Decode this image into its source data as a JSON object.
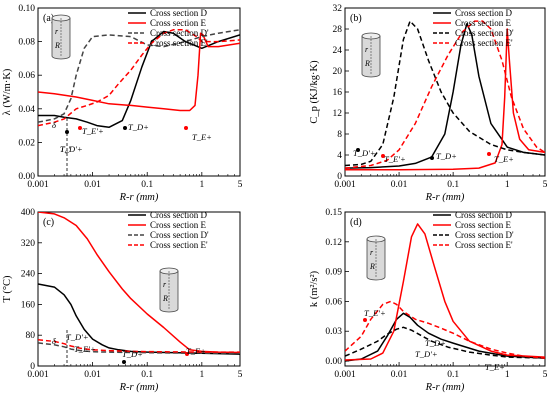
{
  "chart_data": [
    {
      "panel": "(a)",
      "type": "line",
      "xscale": "log",
      "xlim": [
        0.001,
        5
      ],
      "ylim": [
        0,
        0.1
      ],
      "xticks": [
        "0.001",
        "0.01",
        "0.1",
        "1",
        "5"
      ],
      "yticks": [
        "0.00",
        "0.02",
        "0.04",
        "0.06",
        "0.08",
        "0.10"
      ],
      "xlabel": "R-r (mm)",
      "ylabel": "λ (W/m·K)",
      "legend": "top-right",
      "series": [
        {
          "name": "Cross section D",
          "color": "#000000",
          "dash": "solid",
          "x": [
            0.001,
            0.002,
            0.003,
            0.005,
            0.008,
            0.012,
            0.02,
            0.035,
            0.05,
            0.08,
            0.12,
            0.2,
            0.3,
            0.5,
            1,
            2,
            5
          ],
          "y": [
            0.036,
            0.036,
            0.035,
            0.034,
            0.032,
            0.03,
            0.029,
            0.033,
            0.045,
            0.065,
            0.08,
            0.086,
            0.085,
            0.08,
            0.076,
            0.08,
            0.084
          ]
        },
        {
          "name": "Cross section E",
          "color": "#ff0000",
          "dash": "solid",
          "x": [
            0.001,
            0.002,
            0.005,
            0.01,
            0.02,
            0.05,
            0.1,
            0.2,
            0.4,
            0.6,
            0.75,
            0.85,
            0.95,
            1.05,
            1.3,
            2,
            5
          ],
          "y": [
            0.05,
            0.049,
            0.047,
            0.045,
            0.043,
            0.042,
            0.041,
            0.04,
            0.039,
            0.039,
            0.042,
            0.06,
            0.085,
            0.084,
            0.077,
            0.077,
            0.079
          ]
        },
        {
          "name": "Cross section D'",
          "color": "#444444",
          "dash": "dash",
          "x": [
            0.001,
            0.002,
            0.003,
            0.004,
            0.005,
            0.007,
            0.01,
            0.02,
            0.05,
            0.1,
            0.2,
            0.5,
            1,
            2,
            5
          ],
          "y": [
            0.032,
            0.034,
            0.037,
            0.046,
            0.06,
            0.076,
            0.083,
            0.084,
            0.083,
            0.078,
            0.077,
            0.08,
            0.083,
            0.085,
            0.087
          ]
        },
        {
          "name": "Cross section E'",
          "color": "#ff0000",
          "dash": "dash",
          "x": [
            0.001,
            0.002,
            0.003,
            0.005,
            0.008,
            0.012,
            0.02,
            0.03,
            0.05,
            0.08,
            0.12,
            0.2,
            0.3,
            0.5,
            0.8,
            1,
            1.5,
            2,
            5
          ],
          "y": [
            0.03,
            0.032,
            0.034,
            0.04,
            0.042,
            0.044,
            0.048,
            0.055,
            0.063,
            0.072,
            0.079,
            0.085,
            0.087,
            0.087,
            0.083,
            0.08,
            0.08,
            0.08,
            0.081
          ]
        }
      ],
      "annotations": [
        "δ",
        "T_D'+",
        "T_E'+",
        "T_D+",
        "T_E+"
      ]
    },
    {
      "panel": "(b)",
      "type": "line",
      "xscale": "log",
      "xlim": [
        0.001,
        5
      ],
      "ylim": [
        0,
        32
      ],
      "xticks": [
        "0.001",
        "0.01",
        "0.1",
        "1",
        "5"
      ],
      "yticks": [
        "0",
        "4",
        "8",
        "12",
        "16",
        "20",
        "24",
        "28",
        "32"
      ],
      "xlabel": "R-r (mm)",
      "ylabel": "C_p (KJ/kg·K)",
      "legend": "top-right",
      "series": [
        {
          "name": "Cross section D",
          "color": "#000000",
          "dash": "solid",
          "x": [
            0.001,
            0.003,
            0.01,
            0.02,
            0.04,
            0.07,
            0.1,
            0.14,
            0.18,
            0.22,
            0.3,
            0.5,
            1,
            2,
            5
          ],
          "y": [
            1.5,
            1.6,
            1.9,
            2.4,
            3.6,
            8,
            16,
            25,
            29,
            27,
            19,
            10,
            5.5,
            4.5,
            4
          ]
        },
        {
          "name": "Cross section E",
          "color": "#ff0000",
          "dash": "solid",
          "x": [
            0.001,
            0.01,
            0.1,
            0.3,
            0.6,
            0.8,
            0.9,
            1.0,
            1.1,
            1.3,
            1.7,
            2.5,
            5
          ],
          "y": [
            1.2,
            1.2,
            1.3,
            1.5,
            2.5,
            6,
            15,
            28,
            22,
            12,
            7,
            5,
            4.5
          ]
        },
        {
          "name": "Cross section D'",
          "color": "#000000",
          "dash": "dash",
          "x": [
            0.001,
            0.002,
            0.003,
            0.005,
            0.008,
            0.012,
            0.016,
            0.022,
            0.035,
            0.06,
            0.1,
            0.2,
            0.5,
            1,
            2,
            5
          ],
          "y": [
            2,
            2.2,
            2.8,
            6,
            15,
            26,
            29.5,
            28,
            22,
            16,
            12,
            8.5,
            6,
            5,
            4.5,
            4
          ]
        },
        {
          "name": "Cross section E'",
          "color": "#ff0000",
          "dash": "dash",
          "x": [
            0.001,
            0.003,
            0.006,
            0.01,
            0.02,
            0.04,
            0.08,
            0.15,
            0.25,
            0.35,
            0.5,
            0.8,
            1.2,
            2,
            3.5,
            5
          ],
          "y": [
            1.5,
            2,
            3,
            5,
            10,
            17,
            23,
            27.5,
            29.5,
            29.5,
            28,
            22,
            15,
            9,
            5.5,
            4.5
          ]
        }
      ],
      "annotations": [
        "T_D'+",
        "T_E'+",
        "T_D+",
        "T_E+"
      ]
    },
    {
      "panel": "(c)",
      "type": "line",
      "xscale": "log",
      "xlim": [
        0.001,
        5
      ],
      "ylim": [
        0,
        400
      ],
      "xticks": [
        "0.001",
        "0.01",
        "0.1",
        "1",
        "5"
      ],
      "yticks": [
        "0",
        "80",
        "160",
        "240",
        "320",
        "400"
      ],
      "xlabel": "R-r (mm)",
      "ylabel": "T (°C)",
      "legend": "top-right",
      "series": [
        {
          "name": "Cross section D",
          "color": "#000000",
          "dash": "solid",
          "x": [
            0.001,
            0.002,
            0.003,
            0.004,
            0.005,
            0.007,
            0.01,
            0.015,
            0.02,
            0.03,
            0.05,
            0.1,
            0.5,
            1,
            5
          ],
          "y": [
            213,
            205,
            185,
            160,
            130,
            95,
            70,
            55,
            47,
            42,
            38,
            36,
            34,
            33,
            31
          ]
        },
        {
          "name": "Cross section E",
          "color": "#ff0000",
          "dash": "solid",
          "x": [
            0.001,
            0.002,
            0.003,
            0.005,
            0.008,
            0.012,
            0.02,
            0.035,
            0.05,
            0.1,
            0.2,
            0.4,
            0.6,
            1,
            2,
            5
          ],
          "y": [
            400,
            395,
            385,
            365,
            330,
            290,
            245,
            200,
            175,
            135,
            100,
            62,
            42,
            38,
            36,
            35
          ]
        },
        {
          "name": "Cross section D'",
          "color": "#444444",
          "dash": "dash",
          "x": [
            0.001,
            0.002,
            0.003,
            0.004,
            0.006,
            0.01,
            0.02,
            0.05,
            0.2,
            1,
            5
          ],
          "y": [
            60,
            55,
            50,
            44,
            40,
            37,
            36,
            35,
            34,
            33,
            33
          ]
        },
        {
          "name": "Cross section E'",
          "color": "#ff0000",
          "dash": "dash",
          "x": [
            0.001,
            0.002,
            0.003,
            0.004,
            0.006,
            0.01,
            0.02,
            0.05,
            0.2,
            1,
            5
          ],
          "y": [
            68,
            64,
            58,
            52,
            46,
            42,
            40,
            38,
            37,
            36,
            36
          ]
        }
      ],
      "annotations": [
        "δ",
        "T_D'+",
        "T_E'+",
        "T_D+",
        "T_E+"
      ]
    },
    {
      "panel": "(d)",
      "type": "line",
      "xscale": "log",
      "xlim": [
        0.001,
        5
      ],
      "ylim": [
        -0.005,
        0.15
      ],
      "xticks": [
        "0.001",
        "0.01",
        "0.1",
        "1",
        "5"
      ],
      "yticks": [
        "0.00",
        "0.03",
        "0.06",
        "0.09",
        "0.12",
        "0.15"
      ],
      "xlabel": "R-r (mm)",
      "ylabel": "k (m²/s²)",
      "legend": "top-right",
      "series": [
        {
          "name": "Cross section D",
          "color": "#000000",
          "dash": "solid",
          "x": [
            0.001,
            0.002,
            0.004,
            0.006,
            0.009,
            0.012,
            0.016,
            0.022,
            0.035,
            0.06,
            0.1,
            0.3,
            1,
            5
          ],
          "y": [
            0,
            0.002,
            0.01,
            0.025,
            0.042,
            0.048,
            0.044,
            0.036,
            0.028,
            0.022,
            0.018,
            0.01,
            0.005,
            0.003
          ]
        },
        {
          "name": "Cross section E",
          "color": "#ff0000",
          "dash": "solid",
          "x": [
            0.001,
            0.003,
            0.005,
            0.008,
            0.012,
            0.017,
            0.022,
            0.03,
            0.045,
            0.07,
            0.1,
            0.2,
            0.5,
            1,
            5
          ],
          "y": [
            0.001,
            0.002,
            0.008,
            0.03,
            0.08,
            0.125,
            0.138,
            0.128,
            0.095,
            0.06,
            0.04,
            0.02,
            0.01,
            0.006,
            0.004
          ]
        },
        {
          "name": "Cross section D'",
          "color": "#000000",
          "dash": "dash",
          "x": [
            0.001,
            0.002,
            0.004,
            0.006,
            0.009,
            0.012,
            0.017,
            0.025,
            0.04,
            0.08,
            0.2,
            0.5,
            1,
            5
          ],
          "y": [
            0.005,
            0.012,
            0.02,
            0.027,
            0.032,
            0.034,
            0.031,
            0.026,
            0.02,
            0.014,
            0.009,
            0.006,
            0.004,
            0.003
          ]
        },
        {
          "name": "Cross section E'",
          "color": "#ff0000",
          "dash": "dash",
          "x": [
            0.001,
            0.002,
            0.003,
            0.005,
            0.007,
            0.009,
            0.012,
            0.02,
            0.035,
            0.06,
            0.1,
            0.2,
            0.5,
            1,
            2,
            5
          ],
          "y": [
            0.01,
            0.025,
            0.042,
            0.057,
            0.06,
            0.057,
            0.05,
            0.042,
            0.038,
            0.033,
            0.028,
            0.02,
            0.012,
            0.008,
            0.005,
            0.003
          ]
        }
      ],
      "annotations": [
        "T_E'+",
        "T_D'+",
        "T_D+",
        "T_E+"
      ]
    }
  ],
  "inset_labels": {
    "radius": "r",
    "big_radius": "R"
  },
  "legend_labels": [
    "Cross section D",
    "Cross section E",
    "Cross section D'",
    "Cross section E'"
  ]
}
